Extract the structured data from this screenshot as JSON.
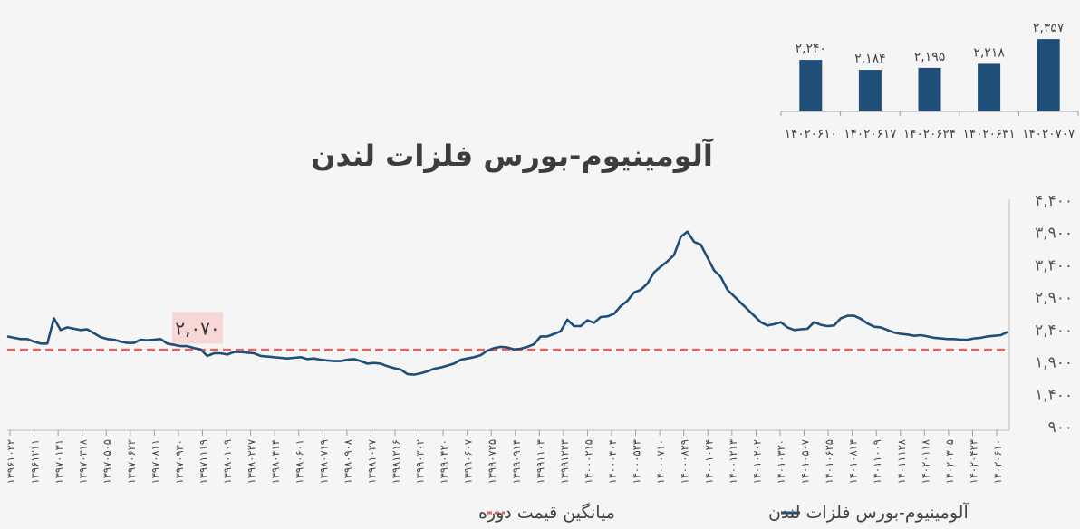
{
  "chart_data": [
    {
      "type": "bar",
      "categories": [
        "۱۴۰۲۰۶۱۰",
        "۱۴۰۲۰۶۱۷",
        "۱۴۰۲۰۶۲۴",
        "۱۴۰۲۰۶۳۱",
        "۱۴۰۲۰۷۰۷"
      ],
      "values": [
        2240,
        2184,
        2195,
        2218,
        2357
      ],
      "value_labels": [
        "۲,۲۴۰",
        "۲,۱۸۴",
        "۲,۱۹۵",
        "۲,۲۱۸",
        "۲,۳۵۷"
      ],
      "ylim": [
        1950,
        2400
      ],
      "color": "#1f4e79"
    },
    {
      "type": "line",
      "title": "آلومینیوم-بورس فلزات لندن",
      "ylim": [
        900,
        4400
      ],
      "yticks": [
        900,
        1400,
        1900,
        2400,
        2900,
        3400,
        3900,
        4400
      ],
      "ytick_labels": [
        "۹۰۰",
        "۱,۴۰۰",
        "۱,۹۰۰",
        "۲,۴۰۰",
        "۲,۹۰۰",
        "۳,۴۰۰",
        "۳,۹۰۰",
        "۴,۴۰۰"
      ],
      "grid": false,
      "legend_position": "bottom",
      "xtick_labels": [
        "۱۳۹۶۱۰۲۲",
        "۱۳۹۶۱۲۱۱",
        "۱۳۹۷۰۱۳۱",
        "۱۳۹۷۰۳۱۸",
        "۱۳۹۷۰۵۰۵",
        "۱۳۹۷۰۶۲۳",
        "۱۳۹۷۰۸۱۱",
        "۱۳۹۷۰۹۳۰",
        "۱۳۹۷۱۱۱۹",
        "۱۳۹۸۰۱۰۹",
        "۱۳۹۸۰۲۲۷",
        "۱۳۹۸۰۴۱۴",
        "۱۳۹۸۰۶۰۱",
        "۱۳۹۸۰۷۱۹",
        "۱۳۹۸۰۹۰۸",
        "۱۳۹۸۱۰۲۷",
        "۱۳۹۸۱۲۱۶",
        "۱۳۹۹۰۳۰۲",
        "۱۳۹۹۰۴۲۰",
        "۱۳۹۹۰۶۰۷",
        "۱۳۹۹۰۷۲۵",
        "۱۳۹۹۰۹۱۴",
        "۱۳۹۹۱۱۰۳",
        "۱۳۹۹۱۲۲۳",
        "۱۴۰۰۰۲۱۵",
        "۱۴۰۰۰۴۰۴",
        "۱۴۰۰۰۵۲۳",
        "۱۴۰۰۰۷۱۰",
        "۱۴۰۰۰۸۲۹",
        "۱۴۰۰۱۰۲۴",
        "۱۴۰۰۱۲۱۳",
        "۱۴۰۱۰۲۰۲",
        "۱۴۰۱۰۳۲۰",
        "۱۴۰۱۰۵۰۷",
        "۱۴۰۱۰۶۲۵",
        "۱۴۰۱۰۸۱۳",
        "۱۴۰۱۱۰۰۹",
        "۱۴۰۱۱۱۲۸",
        "۱۴۰۲۰۱۱۸",
        "۱۴۰۲۰۳۰۵",
        "۱۴۰۲۰۴۲۳",
        "۱۴۰۲۰۶۱۰"
      ],
      "series": [
        {
          "name": "آلومینیوم-بورس فلزات لندن",
          "color": "#1f4e79",
          "values": [
            2280,
            2260,
            2240,
            2240,
            2200,
            2170,
            2170,
            2560,
            2380,
            2420,
            2400,
            2380,
            2390,
            2330,
            2270,
            2240,
            2230,
            2200,
            2180,
            2180,
            2230,
            2220,
            2230,
            2240,
            2170,
            2150,
            2130,
            2130,
            2100,
            2080,
            1980,
            2020,
            2020,
            2000,
            2040,
            2040,
            2030,
            2020,
            1980,
            1970,
            1960,
            1950,
            1940,
            1950,
            1960,
            1930,
            1940,
            1920,
            1910,
            1900,
            1900,
            1920,
            1930,
            1900,
            1860,
            1870,
            1860,
            1820,
            1790,
            1770,
            1700,
            1690,
            1710,
            1740,
            1780,
            1800,
            1830,
            1860,
            1920,
            1940,
            1960,
            1990,
            2060,
            2100,
            2120,
            2110,
            2080,
            2090,
            2120,
            2160,
            2280,
            2280,
            2320,
            2360,
            2540,
            2440,
            2440,
            2530,
            2490,
            2580,
            2590,
            2630,
            2750,
            2830,
            2960,
            3000,
            3100,
            3270,
            3360,
            3440,
            3540,
            3820,
            3900,
            3740,
            3700,
            3500,
            3300,
            3200,
            3000,
            2900,
            2800,
            2700,
            2600,
            2500,
            2450,
            2470,
            2500,
            2420,
            2380,
            2390,
            2400,
            2500,
            2460,
            2440,
            2450,
            2560,
            2600,
            2600,
            2550,
            2480,
            2430,
            2420,
            2380,
            2340,
            2320,
            2310,
            2290,
            2300,
            2280,
            2260,
            2250,
            2240,
            2240,
            2230,
            2230,
            2250,
            2260,
            2280,
            2290,
            2300,
            2350
          ]
        },
        {
          "name": "میانگین قیمت دوره",
          "color": "#e06666",
          "constant": 2070
        }
      ],
      "annotations": [
        {
          "text": "۲,۰۷۰",
          "value": 2070
        }
      ]
    }
  ]
}
